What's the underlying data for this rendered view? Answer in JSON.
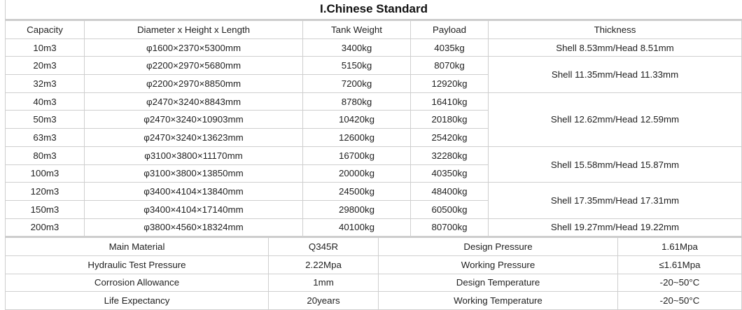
{
  "title": "I.Chinese Standard",
  "headers": [
    "Capacity",
    "Diameter x Height x Length",
    "Tank Weight",
    "Payload",
    "Thickness"
  ],
  "rows": [
    {
      "capacity": "10m3",
      "dimensions": "φ1600×2370×5300mm",
      "tank_weight": "3400kg",
      "payload": "4035kg"
    },
    {
      "capacity": "20m3",
      "dimensions": "φ2200×2970×5680mm",
      "tank_weight": "5150kg",
      "payload": "8070kg"
    },
    {
      "capacity": "32m3",
      "dimensions": "φ2200×2970×8850mm",
      "tank_weight": "7200kg",
      "payload": "12920kg"
    },
    {
      "capacity": "40m3",
      "dimensions": "φ2470×3240×8843mm",
      "tank_weight": "8780kg",
      "payload": "16410kg"
    },
    {
      "capacity": "50m3",
      "dimensions": "φ2470×3240×10903mm",
      "tank_weight": "10420kg",
      "payload": "20180kg"
    },
    {
      "capacity": "63m3",
      "dimensions": "φ2470×3240×13623mm",
      "tank_weight": "12600kg",
      "payload": "25420kg"
    },
    {
      "capacity": "80m3",
      "dimensions": "φ3100×3800×11170mm",
      "tank_weight": "16700kg",
      "payload": "32280kg"
    },
    {
      "capacity": "100m3",
      "dimensions": "φ3100×3800×13850mm",
      "tank_weight": "20000kg",
      "payload": "40350kg"
    },
    {
      "capacity": "120m3",
      "dimensions": "φ3400×4104×13840mm",
      "tank_weight": "24500kg",
      "payload": "48400kg"
    },
    {
      "capacity": "150m3",
      "dimensions": "φ3400×4104×17140mm",
      "tank_weight": "29800kg",
      "payload": "60500kg"
    },
    {
      "capacity": "200m3",
      "dimensions": "φ3800×4560×18324mm",
      "tank_weight": "40100kg",
      "payload": "80700kg"
    }
  ],
  "thickness_groups": [
    {
      "text": "Shell 8.53mm/Head 8.51mm",
      "span": 1
    },
    {
      "text": "Shell 11.35mm/Head 11.33mm",
      "span": 2
    },
    {
      "text": "Shell 12.62mm/Head 12.59mm",
      "span": 3
    },
    {
      "text": "Shell 15.58mm/Head 15.87mm",
      "span": 2
    },
    {
      "text": "Shell 17.35mm/Head 17.31mm",
      "span": 2
    },
    {
      "text": "Shell 19.27mm/Head 19.22mm",
      "span": 1
    }
  ],
  "specs": [
    {
      "label1": "Main Material",
      "value1": "Q345R",
      "label2": "Design Pressure",
      "value2": "1.61Mpa"
    },
    {
      "label1": "Hydraulic Test Pressure",
      "value1": "2.22Mpa",
      "label2": "Working Pressure",
      "value2": "≤1.61Mpa"
    },
    {
      "label1": "Corrosion Allowance",
      "value1": "1mm",
      "label2": "Design Temperature",
      "value2": "-20~50°C"
    },
    {
      "label1": "Life Expectancy",
      "value1": "20years",
      "label2": "Working Temperature",
      "value2": "-20~50°C"
    }
  ]
}
